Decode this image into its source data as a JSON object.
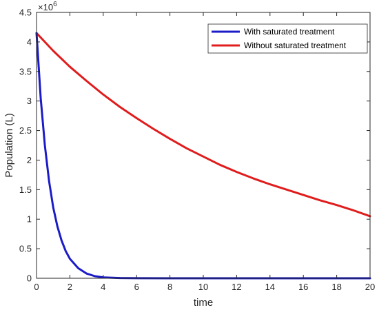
{
  "chart_data": {
    "type": "line",
    "title": "",
    "xlabel": "time",
    "ylabel": "Population (L)",
    "y_multiplier": {
      "base": "×10",
      "exponent": "6"
    },
    "xlim": [
      0,
      20
    ],
    "ylim": [
      0,
      4.5
    ],
    "x_ticks": [
      0,
      2,
      4,
      6,
      8,
      10,
      12,
      14,
      16,
      18,
      20
    ],
    "y_ticks": [
      0,
      0.5,
      1,
      1.5,
      2,
      2.5,
      3,
      3.5,
      4,
      4.5
    ],
    "x_tick_labels": [
      "0",
      "2",
      "4",
      "6",
      "8",
      "10",
      "12",
      "14",
      "16",
      "18",
      "20"
    ],
    "y_tick_labels": [
      "0",
      "0.5",
      "1",
      "1.5",
      "2",
      "2.5",
      "3",
      "3.5",
      "4",
      "4.5"
    ],
    "grid": false,
    "legend_position": "top-right",
    "series": [
      {
        "name": "With saturated treatment",
        "color": "#1b1bc8",
        "x": [
          0,
          0.25,
          0.5,
          0.75,
          1,
          1.25,
          1.5,
          1.75,
          2,
          2.5,
          3,
          3.5,
          4,
          5,
          6,
          8,
          10,
          12,
          14,
          16,
          18,
          20
        ],
        "y": [
          4.15,
          3.05,
          2.25,
          1.65,
          1.2,
          0.88,
          0.64,
          0.46,
          0.33,
          0.17,
          0.08,
          0.035,
          0.015,
          0.004,
          0.001,
          0,
          0,
          0,
          0,
          0,
          0,
          0
        ]
      },
      {
        "name": "Without saturated treatment",
        "color": "#e01c1c",
        "x": [
          0,
          1,
          2,
          3,
          4,
          5,
          6,
          7,
          8,
          9,
          10,
          11,
          12,
          13,
          14,
          15,
          16,
          17,
          18,
          19,
          20
        ],
        "y": [
          4.15,
          3.85,
          3.58,
          3.34,
          3.11,
          2.9,
          2.71,
          2.53,
          2.36,
          2.2,
          2.06,
          1.92,
          1.8,
          1.69,
          1.59,
          1.5,
          1.41,
          1.32,
          1.24,
          1.15,
          1.05
        ]
      }
    ]
  }
}
